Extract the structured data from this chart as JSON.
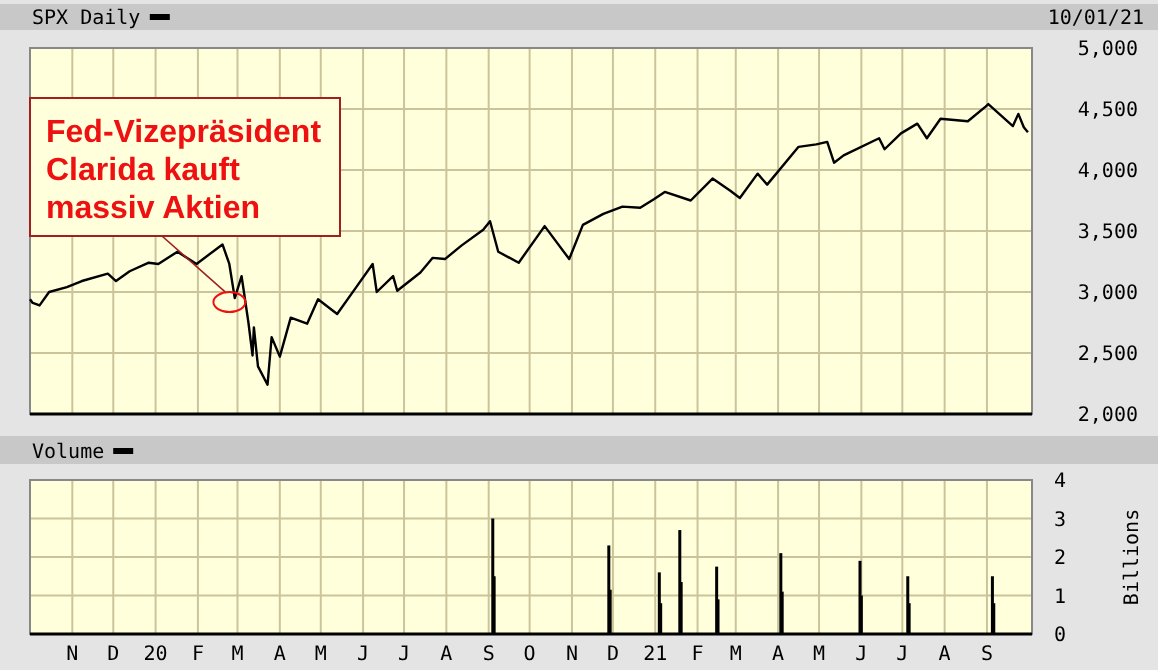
{
  "chart_data": [
    {
      "type": "line",
      "subtitle": "10/01/21",
      "legend": "top left",
      "grid": true,
      "tick_labels": "y",
      "xlim": [
        "2019-10-01",
        "2021-10-04"
      ],
      "ylim": [
        2000,
        5000
      ],
      "yticks": [
        {
          "value": 2000,
          "label": "2,000"
        },
        {
          "value": 2500,
          "label": "2,500"
        },
        {
          "value": 3000,
          "label": "3,000"
        },
        {
          "value": 3500,
          "label": "3,500"
        },
        {
          "value": 4000,
          "label": "4,000"
        },
        {
          "value": 4500,
          "label": "4,500"
        },
        {
          "value": 5000,
          "label": "5,000"
        }
      ],
      "xticks": [
        {
          "value": "2019-11-01",
          "label": null
        },
        {
          "value": "2019-12-01",
          "label": null
        },
        {
          "value": "2020-01-01",
          "label": null
        },
        {
          "value": "2020-02-01",
          "label": null
        },
        {
          "value": "2020-03-01",
          "label": null
        },
        {
          "value": "2020-04-01",
          "label": null
        },
        {
          "value": "2020-05-01",
          "label": null
        },
        {
          "value": "2020-06-01",
          "label": null
        },
        {
          "value": "2020-07-01",
          "label": null
        },
        {
          "value": "2020-08-01",
          "label": null
        },
        {
          "value": "2020-09-01",
          "label": null
        },
        {
          "value": "2020-10-01",
          "label": null
        },
        {
          "value": "2020-11-01",
          "label": null
        },
        {
          "value": "2020-12-01",
          "label": null
        },
        {
          "value": "2021-01-01",
          "label": null
        },
        {
          "value": "2021-02-01",
          "label": null
        },
        {
          "value": "2021-03-01",
          "label": null
        },
        {
          "value": "2021-04-01",
          "label": null
        },
        {
          "value": "2021-05-01",
          "label": null
        },
        {
          "value": "2021-06-01",
          "label": null
        },
        {
          "value": "2021-07-01",
          "label": null
        },
        {
          "value": "2021-08-01",
          "label": null
        },
        {
          "value": "2021-09-01",
          "label": null
        }
      ],
      "annotations": [
        {
          "text": "Fed-Vizepräsident Clarida kauft massiv Aktien",
          "x": "2020-02-27",
          "y": 2950
        }
      ],
      "x": [
        "2019-10-01",
        "2019-10-03",
        "2019-10-08",
        "2019-10-15",
        "2019-10-28",
        "2019-11-08",
        "2019-11-27",
        "2019-12-03",
        "2019-12-13",
        "2019-12-27",
        "2020-01-03",
        "2020-01-17",
        "2020-01-31",
        "2020-02-19",
        "2020-02-24",
        "2020-02-28",
        "2020-03-04",
        "2020-03-09",
        "2020-03-12",
        "2020-03-13",
        "2020-03-16",
        "2020-03-23",
        "2020-03-26",
        "2020-04-01",
        "2020-04-09",
        "2020-04-21",
        "2020-04-29",
        "2020-05-13",
        "2020-05-27",
        "2020-06-08",
        "2020-06-11",
        "2020-06-23",
        "2020-06-26",
        "2020-07-13",
        "2020-07-22",
        "2020-07-31",
        "2020-08-12",
        "2020-08-28",
        "2020-09-02",
        "2020-09-08",
        "2020-09-23",
        "2020-10-12",
        "2020-10-30",
        "2020-11-09",
        "2020-11-24",
        "2020-12-08",
        "2020-12-21",
        "2020-12-31",
        "2021-01-08",
        "2021-01-27",
        "2021-02-12",
        "2021-02-25",
        "2021-03-04",
        "2021-03-17",
        "2021-03-24",
        "2021-04-16",
        "2021-04-29",
        "2021-05-07",
        "2021-05-12",
        "2021-05-19",
        "2021-06-14",
        "2021-06-18",
        "2021-06-30",
        "2021-07-12",
        "2021-07-19",
        "2021-07-29",
        "2021-08-18",
        "2021-08-31",
        "2021-09-02",
        "2021-09-20",
        "2021-09-24",
        "2021-09-28",
        "2021-10-01"
      ],
      "series": [
        {
          "name": "SPX Daily",
          "color": "#000000",
          "values": [
            2940,
            2910,
            2890,
            3000,
            3040,
            3090,
            3150,
            3090,
            3170,
            3240,
            3230,
            3330,
            3230,
            3390,
            3230,
            2950,
            3130,
            2750,
            2480,
            2710,
            2390,
            2240,
            2630,
            2470,
            2790,
            2740,
            2940,
            2820,
            3040,
            3230,
            3000,
            3130,
            3010,
            3160,
            3280,
            3270,
            3380,
            3510,
            3580,
            3330,
            3240,
            3540,
            3270,
            3550,
            3640,
            3700,
            3690,
            3760,
            3820,
            3750,
            3930,
            3830,
            3770,
            3970,
            3880,
            4190,
            4210,
            4230,
            4060,
            4120,
            4260,
            4170,
            4300,
            4380,
            4260,
            4420,
            4400,
            4520,
            4540,
            4360,
            4460,
            4350,
            4310
          ]
        }
      ]
    },
    {
      "type": "bar",
      "legend": "top left",
      "grid": true,
      "ylabel": "Billions",
      "xlim": [
        "2019-10-01",
        "2021-10-04"
      ],
      "ylim": [
        0,
        4
      ],
      "yticks": [
        0,
        1,
        2,
        3,
        4
      ],
      "xticks": [
        {
          "value": "2019-11-01",
          "label": "N"
        },
        {
          "value": "2019-12-01",
          "label": "D"
        },
        {
          "value": "2020-01-01",
          "label": "20"
        },
        {
          "value": "2020-02-01",
          "label": "F"
        },
        {
          "value": "2020-03-01",
          "label": "M"
        },
        {
          "value": "2020-04-01",
          "label": "A"
        },
        {
          "value": "2020-05-01",
          "label": "M"
        },
        {
          "value": "2020-06-01",
          "label": "J"
        },
        {
          "value": "2020-07-01",
          "label": "J"
        },
        {
          "value": "2020-08-01",
          "label": "A"
        },
        {
          "value": "2020-09-01",
          "label": "S"
        },
        {
          "value": "2020-10-01",
          "label": "O"
        },
        {
          "value": "2020-11-01",
          "label": "N"
        },
        {
          "value": "2020-12-01",
          "label": "D"
        },
        {
          "value": "2021-01-01",
          "label": "21"
        },
        {
          "value": "2021-02-01",
          "label": "F"
        },
        {
          "value": "2021-03-01",
          "label": "M"
        },
        {
          "value": "2021-04-01",
          "label": "A"
        },
        {
          "value": "2021-05-01",
          "label": "M"
        },
        {
          "value": "2021-06-01",
          "label": "J"
        },
        {
          "value": "2021-07-01",
          "label": "J"
        },
        {
          "value": "2021-08-01",
          "label": "A"
        },
        {
          "value": "2021-09-01",
          "label": "S"
        }
      ],
      "x": [
        "2020-09-04",
        "2020-09-05",
        "2020-11-28",
        "2020-11-29",
        "2021-01-04",
        "2021-01-05",
        "2021-01-19",
        "2021-01-20",
        "2021-02-15",
        "2021-02-16",
        "2021-04-03",
        "2021-04-04",
        "2021-05-31",
        "2021-06-01",
        "2021-07-05",
        "2021-07-06",
        "2021-09-05",
        "2021-09-06"
      ],
      "series": [
        {
          "name": "Volume",
          "color": "#000000",
          "values": [
            3.0,
            1.5,
            2.3,
            1.15,
            1.6,
            0.8,
            2.7,
            1.35,
            1.75,
            0.9,
            2.1,
            1.1,
            1.9,
            1.0,
            1.5,
            0.8,
            1.5,
            0.8
          ]
        }
      ]
    }
  ]
}
